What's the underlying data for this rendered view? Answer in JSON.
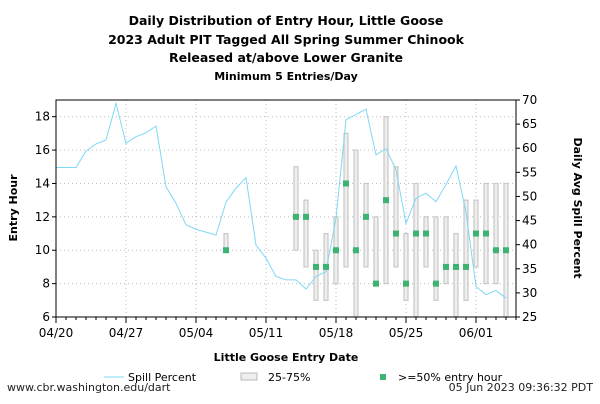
{
  "chart_data": {
    "type": "box-with-line",
    "title": [
      "Daily Distribution of Entry Hour, Little Goose",
      "2023 Adult PIT Tagged All Spring Summer Chinook",
      "Released at/above Lower Granite"
    ],
    "subtitle": "Minimum 5 Entries/Day",
    "xlabel": "Little Goose Entry Date",
    "ylabel": "Entry Hour",
    "y2label": "Daily Avg Spill Percent",
    "xticks": [
      "04/20",
      "04/27",
      "05/04",
      "05/11",
      "05/18",
      "05/25",
      "06/01"
    ],
    "xrange": [
      "04/20",
      "06/05"
    ],
    "ylim": [
      6,
      19
    ],
    "yticks": [
      6,
      8,
      10,
      12,
      14,
      16,
      18
    ],
    "y2lim": [
      25,
      70
    ],
    "y2ticks": [
      25,
      30,
      35,
      40,
      45,
      50,
      55,
      60,
      65,
      70
    ],
    "grid": true,
    "legend": {
      "placement": "bottom",
      "entries": [
        "Spill Percent",
        "25-75%",
        ">=50% entry hour"
      ]
    },
    "colors": {
      "spill": "#7fd8f5",
      "box": "#c8c8c8",
      "median": "#3cb371"
    },
    "boxes": [
      {
        "date": "05/07",
        "q1": 10,
        "q3": 11,
        "median": 10
      },
      {
        "date": "05/14",
        "q1": 10,
        "q3": 15,
        "median": 12
      },
      {
        "date": "05/15",
        "q1": 9,
        "q3": 13,
        "median": 12
      },
      {
        "date": "05/16",
        "q1": 7,
        "q3": 10,
        "median": 9
      },
      {
        "date": "05/17",
        "q1": 7,
        "q3": 11,
        "median": 9
      },
      {
        "date": "05/18",
        "q1": 8,
        "q3": 12,
        "median": 10
      },
      {
        "date": "05/19",
        "q1": 9,
        "q3": 17,
        "median": 14
      },
      {
        "date": "05/20",
        "q1": 6,
        "q3": 16,
        "median": 10
      },
      {
        "date": "05/21",
        "q1": 9,
        "q3": 14,
        "median": 12
      },
      {
        "date": "05/22",
        "q1": 8,
        "q3": 12,
        "median": 8
      },
      {
        "date": "05/23",
        "q1": 8,
        "q3": 18,
        "median": 13
      },
      {
        "date": "05/24",
        "q1": 9,
        "q3": 15,
        "median": 11
      },
      {
        "date": "05/25",
        "q1": 7,
        "q3": 11,
        "median": 8
      },
      {
        "date": "05/26",
        "q1": 6,
        "q3": 14,
        "median": 11
      },
      {
        "date": "05/27",
        "q1": 9,
        "q3": 12,
        "median": 11
      },
      {
        "date": "05/28",
        "q1": 7,
        "q3": 12,
        "median": 8
      },
      {
        "date": "05/29",
        "q1": 8,
        "q3": 12,
        "median": 9
      },
      {
        "date": "05/30",
        "q1": 6,
        "q3": 11,
        "median": 9
      },
      {
        "date": "05/31",
        "q1": 7,
        "q3": 13,
        "median": 9
      },
      {
        "date": "06/01",
        "q1": 9,
        "q3": 13,
        "median": 11
      },
      {
        "date": "06/02",
        "q1": 8,
        "q3": 14,
        "median": 11
      },
      {
        "date": "06/03",
        "q1": 8,
        "q3": 14,
        "median": 10
      },
      {
        "date": "06/04",
        "q1": 6,
        "q3": 14,
        "median": 10
      }
    ],
    "spill": {
      "name": "Spill Percent",
      "dates": [
        "04/20",
        "04/21",
        "04/22",
        "04/23",
        "04/24",
        "04/25",
        "04/26",
        "04/27",
        "04/28",
        "04/29",
        "04/30",
        "05/01",
        "05/02",
        "05/03",
        "05/04",
        "05/05",
        "05/06",
        "05/07",
        "05/08",
        "05/09",
        "05/10",
        "05/11",
        "05/12",
        "05/13",
        "05/14",
        "05/15",
        "05/16",
        "05/17",
        "05/18",
        "05/19",
        "05/20",
        "05/21",
        "05/22",
        "05/23",
        "05/24",
        "05/25",
        "05/26",
        "05/27",
        "05/28",
        "05/29",
        "05/30",
        "05/31",
        "06/01",
        "06/02",
        "06/03",
        "06/04"
      ],
      "values": [
        56,
        56,
        56,
        59.4,
        60.9,
        61.7,
        69.3,
        61,
        62.4,
        63.2,
        64.6,
        52,
        48.6,
        44.1,
        43.2,
        42.6,
        42,
        48.8,
        51.7,
        53.9,
        39.9,
        37.2,
        33.4,
        32.7,
        32.7,
        30.8,
        33.4,
        34.4,
        45.5,
        65.9,
        67,
        68.1,
        58.6,
        59.9,
        55.5,
        44.4,
        49.6,
        50.7,
        48.9,
        52.5,
        56.3,
        46.8,
        31.3,
        29.6,
        30.5,
        28.9
      ]
    }
  },
  "footer": {
    "left": "www.cbr.washington.edu/dart",
    "right": "05 Jun 2023 09:36:32 PDT"
  }
}
